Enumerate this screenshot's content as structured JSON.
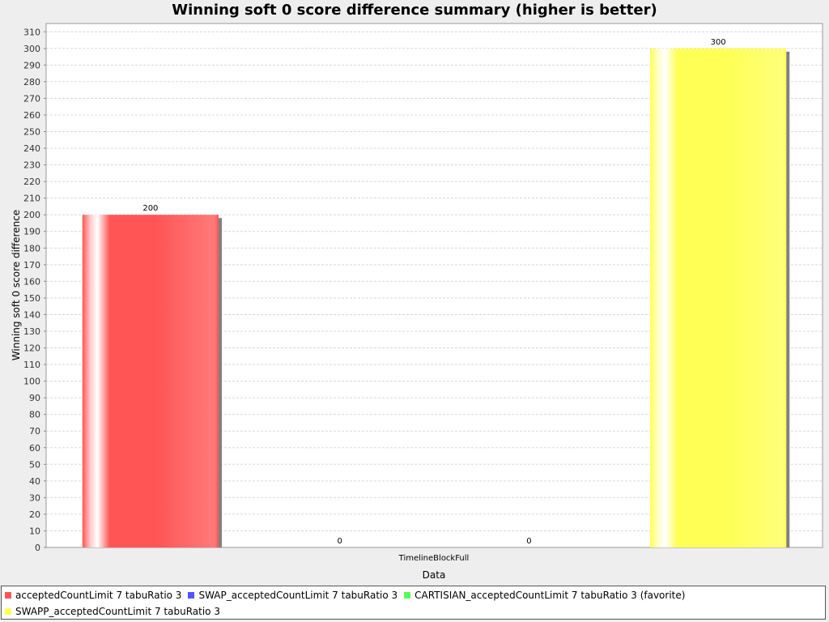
{
  "chart_data": {
    "type": "bar",
    "title": "Winning soft 0 score difference summary (higher is better)",
    "xlabel": "Data",
    "ylabel": "Winning soft 0 score difference",
    "categories": [
      "TimelineBlockFull"
    ],
    "series": [
      {
        "name": "acceptedCountLimit 7 tabuRatio 3",
        "values": [
          200
        ],
        "color": "#ff5555"
      },
      {
        "name": "SWAP_acceptedCountLimit 7 tabuRatio 3",
        "values": [
          0
        ],
        "color": "#5555ff"
      },
      {
        "name": "CARTISIAN_acceptedCountLimit 7 tabuRatio 3 (favorite)",
        "values": [
          0
        ],
        "color": "#55ff55"
      },
      {
        "name": "SWAPP_acceptedCountLimit 7 tabuRatio 3",
        "values": [
          300
        ],
        "color": "#ffff55"
      }
    ],
    "data_labels": [
      "200",
      "0",
      "0",
      "300"
    ],
    "ylim": [
      0,
      315
    ],
    "yticks": [
      0,
      10,
      20,
      30,
      40,
      50,
      60,
      70,
      80,
      90,
      100,
      110,
      120,
      130,
      140,
      150,
      160,
      170,
      180,
      190,
      200,
      210,
      220,
      230,
      240,
      250,
      260,
      270,
      280,
      290,
      300,
      310
    ],
    "grid": true,
    "legend_position": "bottom"
  }
}
